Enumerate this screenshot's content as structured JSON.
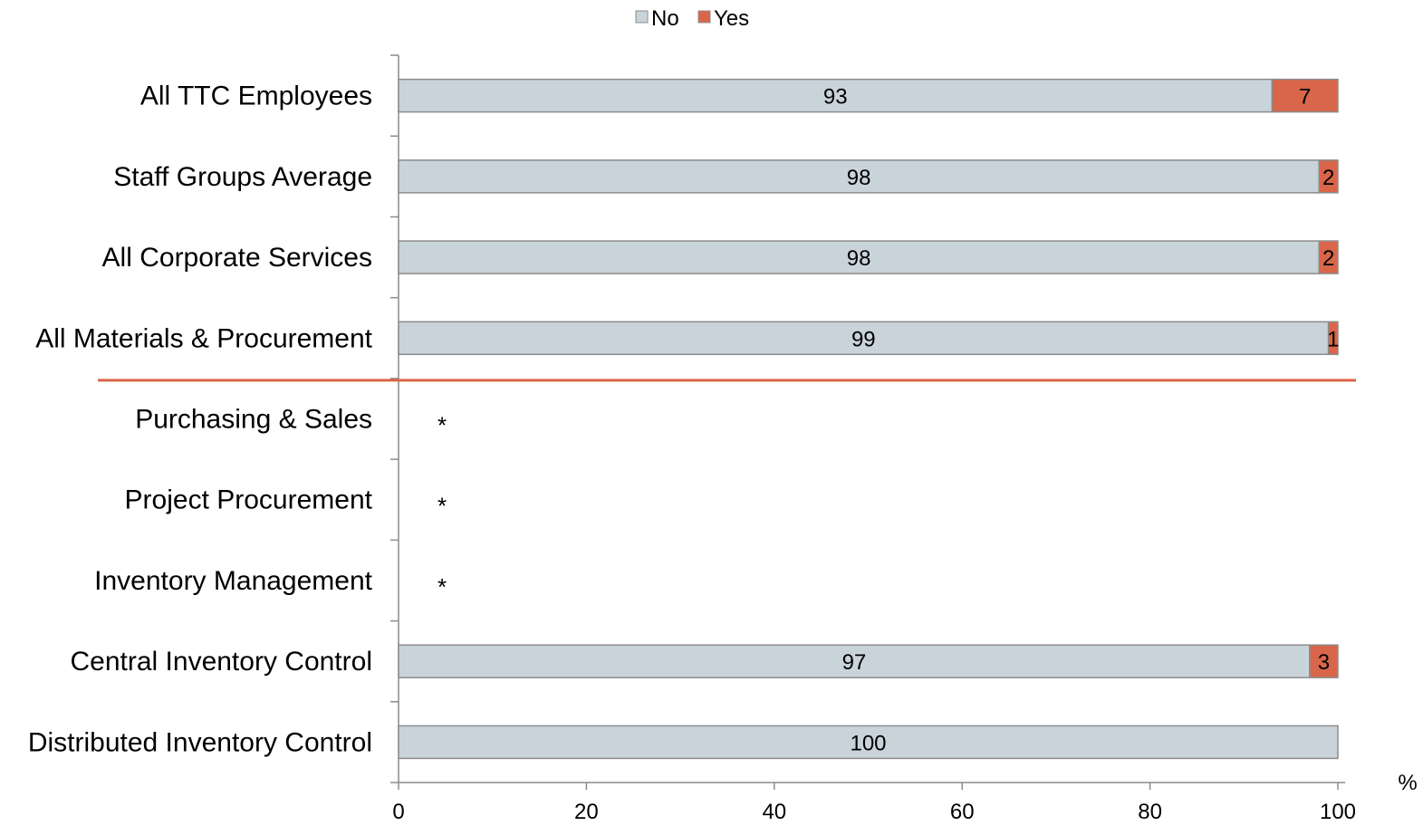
{
  "chart_data": {
    "type": "bar",
    "orientation": "horizontal",
    "stacked": true,
    "categories": [
      "All TTC Employees",
      "Staff Groups Average",
      "All Corporate Services",
      "All Materials & Procurement",
      "Purchasing & Sales",
      "Project Procurement",
      "Inventory Management",
      "Central Inventory Control",
      "Distributed Inventory Control"
    ],
    "series": [
      {
        "name": "No",
        "color": "#c9d3da",
        "values": [
          93,
          98,
          98,
          99,
          null,
          null,
          null,
          97,
          100
        ]
      },
      {
        "name": "Yes",
        "color": "#d9664a",
        "values": [
          7,
          2,
          2,
          1,
          null,
          null,
          null,
          3,
          null
        ]
      }
    ],
    "suppressed_marker": "*",
    "suppressed_categories": [
      "Purchasing & Sales",
      "Project Procurement",
      "Inventory Management"
    ],
    "x_ticks": [
      "0",
      "20",
      "40",
      "60",
      "80",
      "100"
    ],
    "xlim": [
      0,
      100
    ],
    "x_unit": "%",
    "legend": {
      "position": "top",
      "entries": [
        "No",
        "Yes"
      ]
    },
    "separator_after_category": "All Materials & Procurement",
    "separator_color": "#d9664a",
    "grid": false
  }
}
